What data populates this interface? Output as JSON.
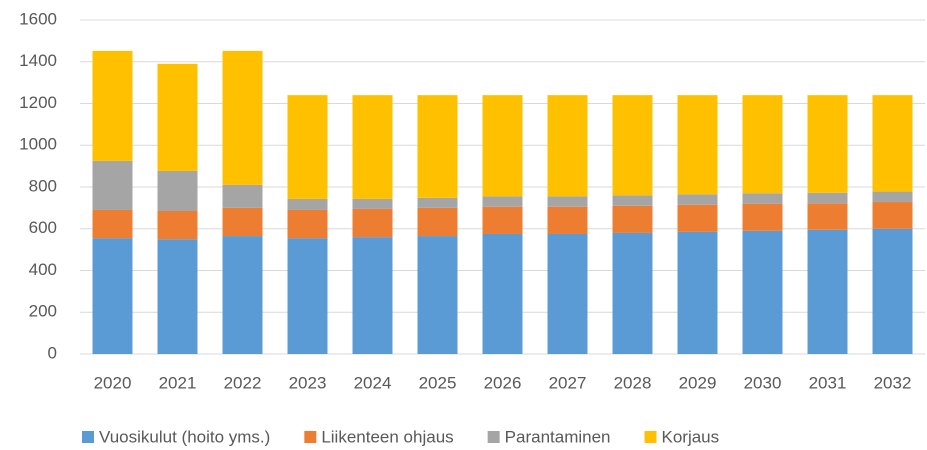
{
  "chart_data": {
    "type": "stacked_bar",
    "categories": [
      "2020",
      "2021",
      "2022",
      "2023",
      "2024",
      "2025",
      "2026",
      "2027",
      "2028",
      "2029",
      "2030",
      "2031",
      "2032"
    ],
    "series": [
      {
        "name": "Vuosikulut (hoito yms.)",
        "color": "#5b9bd5",
        "values": [
          555,
          550,
          565,
          555,
          560,
          565,
          575,
          575,
          580,
          585,
          590,
          595,
          600
        ]
      },
      {
        "name": "Liikenteen ohjaus",
        "color": "#ed7d31",
        "values": [
          135,
          135,
          135,
          135,
          135,
          135,
          130,
          130,
          130,
          130,
          130,
          127,
          128
        ]
      },
      {
        "name": "Parantaminen",
        "color": "#a5a5a5",
        "values": [
          235,
          192,
          110,
          53,
          48,
          48,
          50,
          50,
          50,
          50,
          50,
          50,
          50
        ]
      },
      {
        "name": "Korjaus",
        "color": "#ffc000",
        "values": [
          527,
          513,
          642,
          497,
          497,
          492,
          485,
          485,
          480,
          475,
          470,
          468,
          462
        ]
      }
    ],
    "ylim": [
      0,
      1600
    ],
    "yticks": [
      0,
      200,
      400,
      600,
      800,
      1000,
      1200,
      1400,
      1600
    ],
    "grid": true,
    "legend": "bottom"
  }
}
